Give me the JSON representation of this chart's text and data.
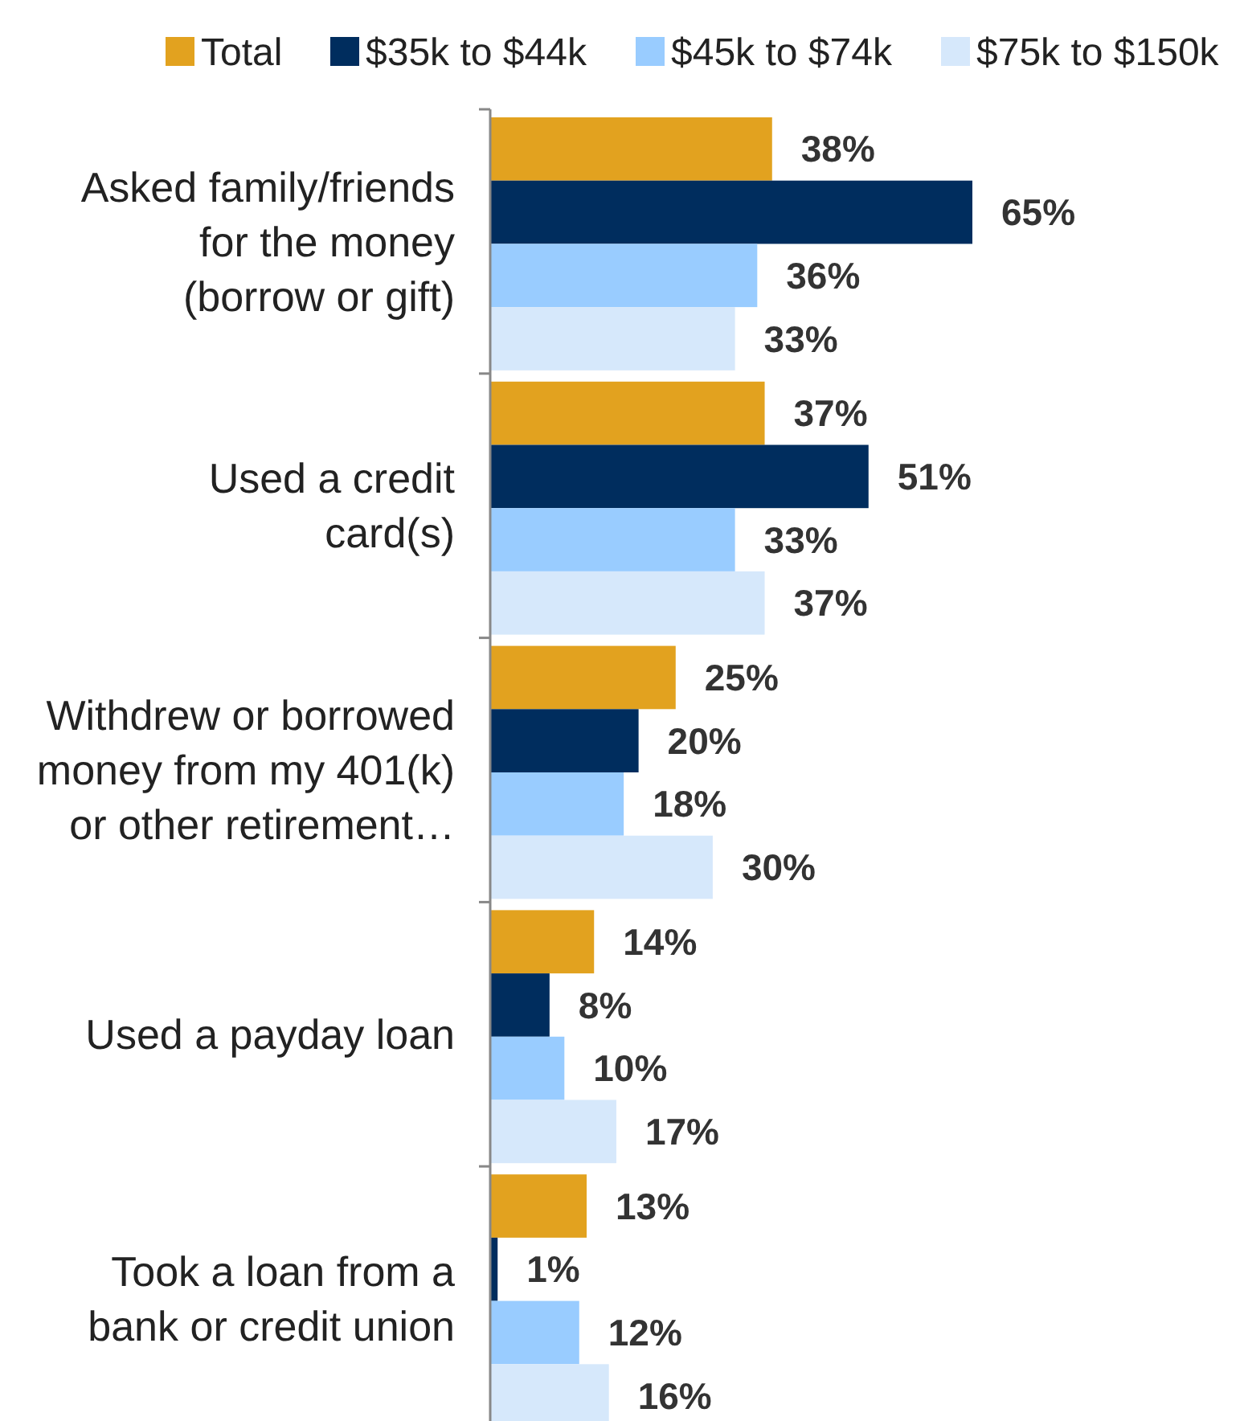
{
  "chart_data": {
    "type": "bar",
    "orientation": "horizontal",
    "legend": "top",
    "categories": [
      "Asked family/friends for the money (borrow or gift)",
      "Used a credit card(s)",
      "Withdrew or borrowed money from my 401(k) or other retirement…",
      "Used a payday loan",
      "Took a loan from a bank or credit union"
    ],
    "series": [
      {
        "name": "Total",
        "color": "#e2a21f",
        "values": [
          38,
          37,
          25,
          14,
          13
        ],
        "value_labels": [
          "38%",
          "37%",
          "25%",
          "14%",
          "13%"
        ]
      },
      {
        "name": "$35k to $44k",
        "color": "#002d5e",
        "values": [
          65,
          51,
          20,
          8,
          1
        ],
        "value_labels": [
          "65%",
          "51%",
          "20%",
          "8%",
          "1%"
        ]
      },
      {
        "name": "$45k to $74k",
        "color": "#99ccff",
        "values": [
          36,
          33,
          18,
          10,
          12
        ],
        "value_labels": [
          "36%",
          "33%",
          "18%",
          "10%",
          "12%"
        ]
      },
      {
        "name": "$75k to $150k",
        "color": "#d6e8fb",
        "values": [
          33,
          37,
          30,
          17,
          16
        ],
        "value_labels": [
          "33%",
          "37%",
          "30%",
          "17%",
          "16%"
        ]
      }
    ]
  }
}
